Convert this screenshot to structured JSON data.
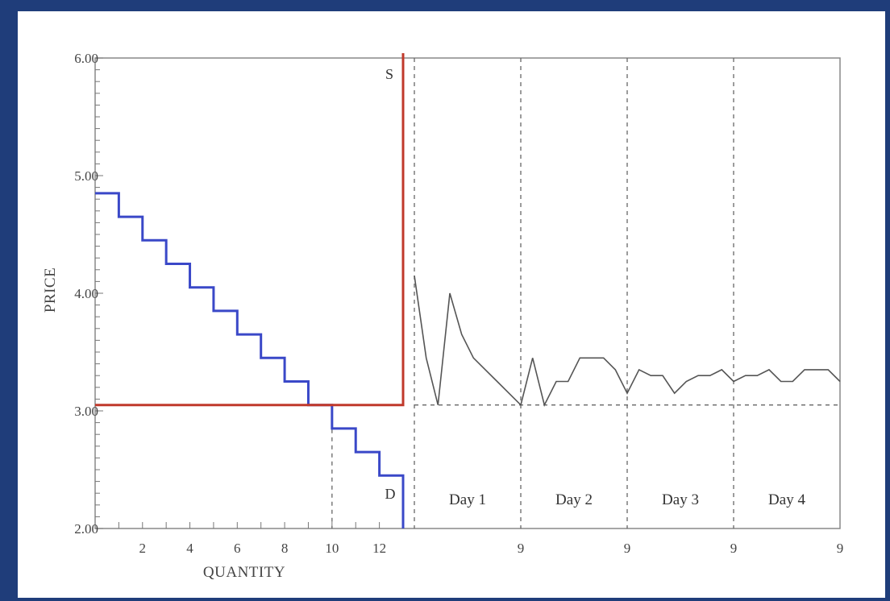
{
  "chart_data": {
    "type": "line",
    "xlabel": "QUANTITY",
    "ylabel": "PRICE",
    "ylim": [
      2.0,
      6.0
    ],
    "yticks": [
      "2.00",
      "3.00",
      "4.00",
      "5.00",
      "6.00"
    ],
    "quantity_axis": {
      "xlim": [
        0,
        13
      ],
      "ticks": [
        "2",
        "4",
        "6",
        "8",
        "10",
        "12"
      ]
    },
    "series": [
      {
        "name": "D",
        "color": "#3a48c8",
        "kind": "step",
        "steps": [
          {
            "q": [
              0,
              1
            ],
            "p": 4.85
          },
          {
            "q": [
              1,
              2
            ],
            "p": 4.65
          },
          {
            "q": [
              2,
              3
            ],
            "p": 4.45
          },
          {
            "q": [
              3,
              4
            ],
            "p": 4.25
          },
          {
            "q": [
              4,
              5
            ],
            "p": 4.05
          },
          {
            "q": [
              5,
              6
            ],
            "p": 3.85
          },
          {
            "q": [
              6,
              7
            ],
            "p": 3.65
          },
          {
            "q": [
              7,
              8
            ],
            "p": 3.45
          },
          {
            "q": [
              8,
              9
            ],
            "p": 3.25
          },
          {
            "q": [
              9,
              10
            ],
            "p": 3.05
          },
          {
            "q": [
              10,
              11
            ],
            "p": 2.85
          },
          {
            "q": [
              11,
              12
            ],
            "p": 2.65
          },
          {
            "q": [
              12,
              13
            ],
            "p": 2.45
          }
        ]
      },
      {
        "name": "S",
        "color": "#c0392b",
        "kind": "step",
        "price_floor": 3.05,
        "capacity_q": 13
      }
    ],
    "equilibrium": {
      "price": 3.05,
      "quantity": 10
    },
    "price_series": {
      "color": "#555555",
      "days": [
        {
          "label": "Day 1",
          "end_label": "9",
          "prices": [
            4.15,
            3.45,
            3.05,
            4.0,
            3.65,
            3.45,
            3.35,
            3.25,
            3.15,
            3.05
          ]
        },
        {
          "label": "Day 2",
          "end_label": "9",
          "prices": [
            3.05,
            3.45,
            3.05,
            3.25,
            3.25,
            3.45,
            3.45,
            3.45,
            3.35,
            3.15
          ]
        },
        {
          "label": "Day 3",
          "end_label": "9",
          "prices": [
            3.15,
            3.35,
            3.3,
            3.3,
            3.15,
            3.25,
            3.3,
            3.3,
            3.35,
            3.25
          ]
        },
        {
          "label": "Day 4",
          "end_label": "9",
          "prices": [
            3.25,
            3.3,
            3.3,
            3.35,
            3.25,
            3.25,
            3.35,
            3.35,
            3.35,
            3.25
          ]
        }
      ]
    },
    "grid": false,
    "legend": "none"
  }
}
